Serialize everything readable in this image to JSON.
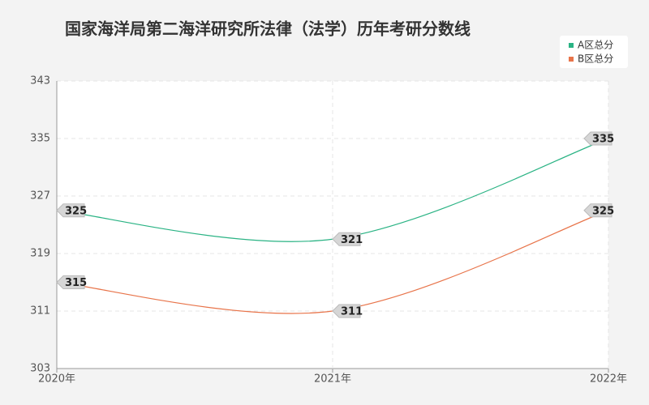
{
  "chart_data": {
    "type": "line",
    "title": "国家海洋局第二海洋研究所法律（法学）历年考研分数线",
    "categories": [
      "2020年",
      "2021年",
      "2022年"
    ],
    "series": [
      {
        "name": "A区总分",
        "color": "#2ab384",
        "values": [
          325,
          321,
          335
        ]
      },
      {
        "name": "B区总分",
        "color": "#e8744a",
        "values": [
          315,
          311,
          325
        ]
      }
    ],
    "ylim": [
      303,
      343
    ],
    "yticks": [
      303,
      311,
      319,
      327,
      335,
      343
    ],
    "grid": true,
    "legend": "top-right"
  }
}
